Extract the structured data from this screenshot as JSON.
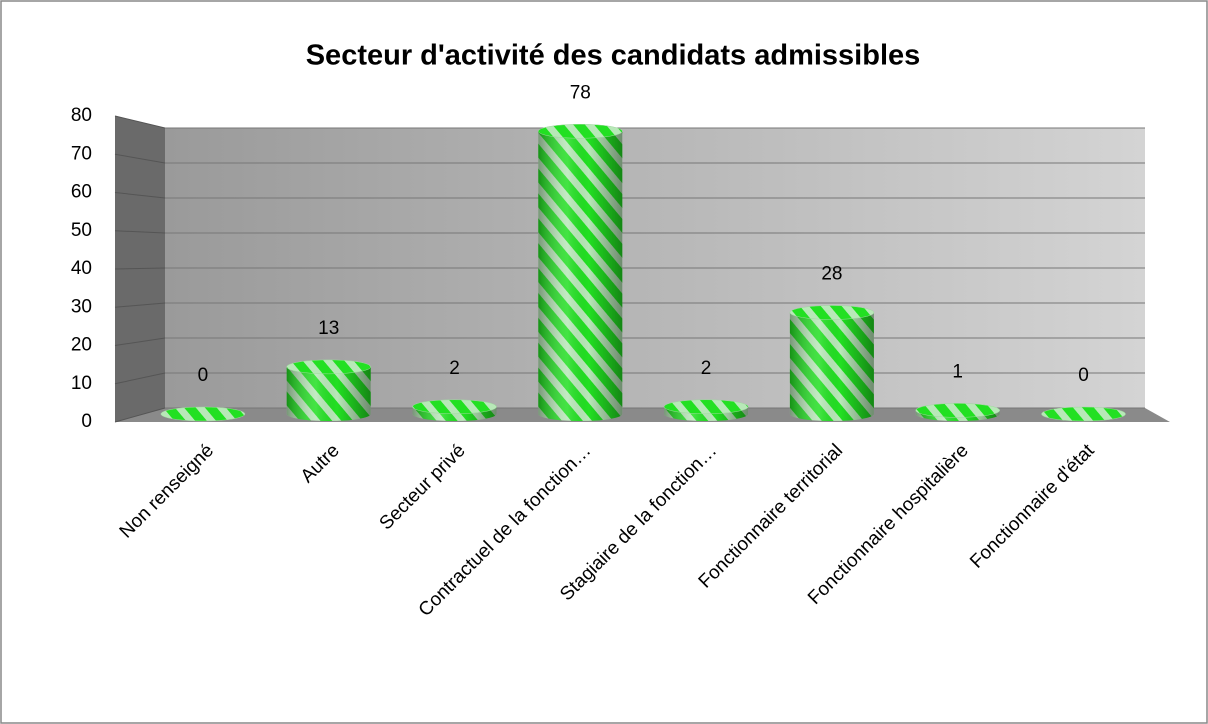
{
  "chart_data": {
    "type": "bar",
    "title": "Secteur d'activité des candidats admissibles",
    "categories": [
      "Non renseigné",
      "Autre",
      "Secteur privé",
      "Contractuel de la fonction…",
      "Stagiaire de la fonction…",
      "Fonctionnaire territorial",
      "Fonctionnaire hospitalière",
      "Fonctionnaire d'état"
    ],
    "values": [
      0,
      13,
      2,
      78,
      2,
      28,
      1,
      0
    ],
    "color": "#22e022",
    "ylim": [
      0,
      80
    ],
    "yticks": [
      0,
      10,
      20,
      30,
      40,
      50,
      60,
      70,
      80
    ],
    "grid": true
  }
}
